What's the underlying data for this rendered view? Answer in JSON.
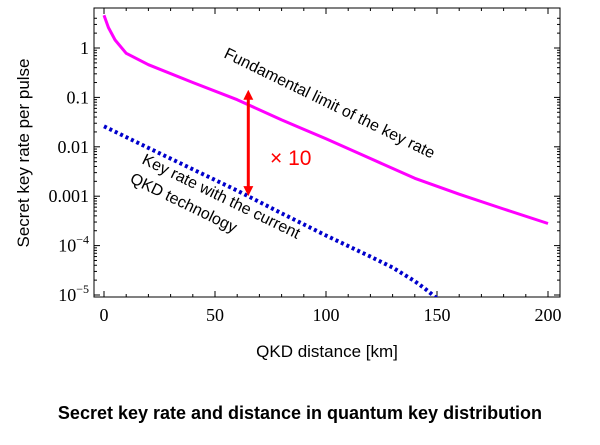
{
  "chart_data": {
    "type": "line",
    "xlabel": "QKD distance [km]",
    "ylabel": "Secret key rate per pulse",
    "xlim": [
      0,
      200
    ],
    "ylim_log10": [
      -5,
      0.7
    ],
    "yscale": "log",
    "x_ticks": [
      "0",
      "50",
      "100",
      "150",
      "200"
    ],
    "y_ticks": [
      {
        "value": 1,
        "label": "1"
      },
      {
        "value": 0.1,
        "label": "0.1"
      },
      {
        "value": 0.01,
        "label": "0.01"
      },
      {
        "value": 0.001,
        "label": "0.001"
      },
      {
        "value": 0.0001,
        "label": "10",
        "exp": "−4"
      },
      {
        "value": 1e-05,
        "label": "10",
        "exp": "−5"
      }
    ],
    "grid": false,
    "series": [
      {
        "name": "Fundamental limit of the key rate",
        "color": "#ff00ff",
        "style": "solid",
        "x": [
          0,
          2,
          5,
          10,
          20,
          40,
          60,
          80,
          100,
          120,
          140,
          160,
          180,
          200
        ],
        "y": [
          4.6,
          2.6,
          1.45,
          0.78,
          0.46,
          0.2,
          0.09,
          0.035,
          0.0145,
          0.0058,
          0.0023,
          0.0011,
          0.00055,
          0.00028
        ]
      },
      {
        "name": "Key rate with the current QKD technology",
        "color": "#0000cc",
        "style": "dotted",
        "x": [
          0,
          20,
          40,
          60,
          80,
          100,
          120,
          130,
          140,
          145,
          150,
          153
        ],
        "y": [
          0.026,
          0.0095,
          0.0035,
          0.0013,
          0.00045,
          0.00016,
          6e-05,
          3.6e-05,
          1.9e-05,
          1.3e-05,
          8.5e-06,
          6.5e-06
        ]
      }
    ],
    "annotations": {
      "fundamental": "Fundamental limit of the key rate",
      "current_line1": "Key rate with the current",
      "current_line2": "QKD technology",
      "factor": "× 10"
    },
    "arrow": {
      "x": 65,
      "y_top": 0.13,
      "y_bottom": 0.0011,
      "color": "#ff0000"
    }
  },
  "caption": "Secret key rate and distance in quantum key distribution"
}
